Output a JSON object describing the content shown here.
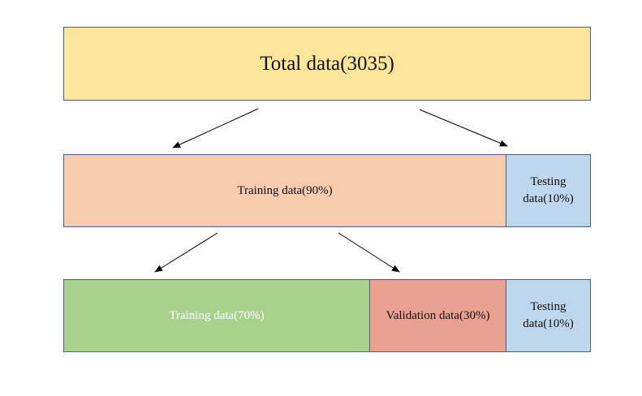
{
  "boxes": {
    "total": {
      "label": "Total data(3035)",
      "color": "#fde59b"
    },
    "training_90": {
      "label": "Training data(90%)",
      "color": "#f7cbad"
    },
    "testing_top": {
      "label": "Testing data(10%)",
      "color": "#bfd7ee"
    },
    "training_70": {
      "label": "Training data(70%)",
      "color": "#a9d18e"
    },
    "validation": {
      "label": "Validation data(30%)",
      "color": "#eaa191"
    },
    "testing_bottom": {
      "label": "Testing data(10%)",
      "color": "#bfd7ee"
    }
  },
  "arrow_color": "#000000",
  "border_color": "#4a5f86"
}
